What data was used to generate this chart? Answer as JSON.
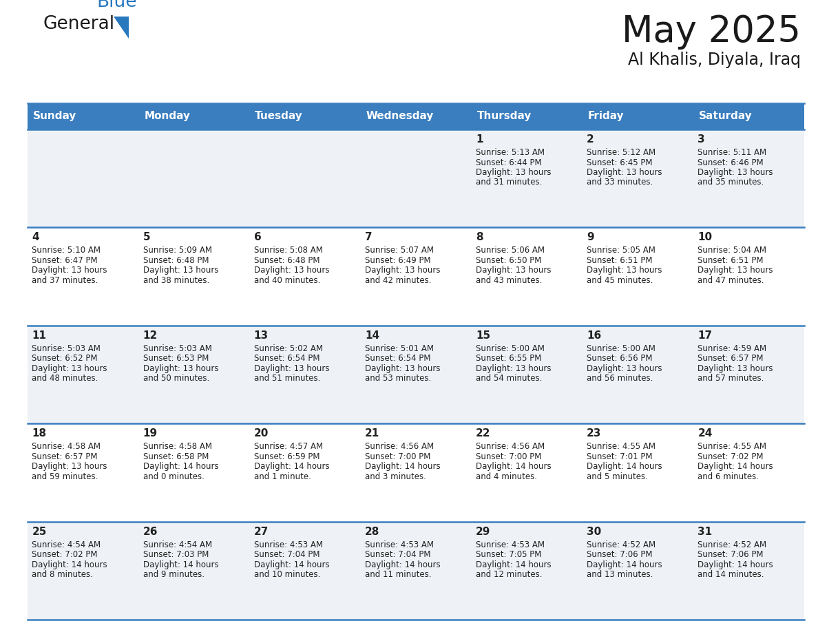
{
  "title": "May 2025",
  "subtitle": "Al Khalis, Diyala, Iraq",
  "days_of_week": [
    "Sunday",
    "Monday",
    "Tuesday",
    "Wednesday",
    "Thursday",
    "Friday",
    "Saturday"
  ],
  "header_bg": "#3a7ebf",
  "header_text_color": "#ffffff",
  "row_bg_odd": "#eef2f7",
  "row_bg_even": "#ffffff",
  "cell_text_color": "#222222",
  "day_number_color": "#222222",
  "grid_line_color": "#3a7ebf",
  "calendar_data": [
    [
      {
        "day": "",
        "sunrise": "",
        "sunset": "",
        "daylight": ""
      },
      {
        "day": "",
        "sunrise": "",
        "sunset": "",
        "daylight": ""
      },
      {
        "day": "",
        "sunrise": "",
        "sunset": "",
        "daylight": ""
      },
      {
        "day": "",
        "sunrise": "",
        "sunset": "",
        "daylight": ""
      },
      {
        "day": "1",
        "sunrise": "5:13 AM",
        "sunset": "6:44 PM",
        "daylight": "13 hours and 31 minutes."
      },
      {
        "day": "2",
        "sunrise": "5:12 AM",
        "sunset": "6:45 PM",
        "daylight": "13 hours and 33 minutes."
      },
      {
        "day": "3",
        "sunrise": "5:11 AM",
        "sunset": "6:46 PM",
        "daylight": "13 hours and 35 minutes."
      }
    ],
    [
      {
        "day": "4",
        "sunrise": "5:10 AM",
        "sunset": "6:47 PM",
        "daylight": "13 hours and 37 minutes."
      },
      {
        "day": "5",
        "sunrise": "5:09 AM",
        "sunset": "6:48 PM",
        "daylight": "13 hours and 38 minutes."
      },
      {
        "day": "6",
        "sunrise": "5:08 AM",
        "sunset": "6:48 PM",
        "daylight": "13 hours and 40 minutes."
      },
      {
        "day": "7",
        "sunrise": "5:07 AM",
        "sunset": "6:49 PM",
        "daylight": "13 hours and 42 minutes."
      },
      {
        "day": "8",
        "sunrise": "5:06 AM",
        "sunset": "6:50 PM",
        "daylight": "13 hours and 43 minutes."
      },
      {
        "day": "9",
        "sunrise": "5:05 AM",
        "sunset": "6:51 PM",
        "daylight": "13 hours and 45 minutes."
      },
      {
        "day": "10",
        "sunrise": "5:04 AM",
        "sunset": "6:51 PM",
        "daylight": "13 hours and 47 minutes."
      }
    ],
    [
      {
        "day": "11",
        "sunrise": "5:03 AM",
        "sunset": "6:52 PM",
        "daylight": "13 hours and 48 minutes."
      },
      {
        "day": "12",
        "sunrise": "5:03 AM",
        "sunset": "6:53 PM",
        "daylight": "13 hours and 50 minutes."
      },
      {
        "day": "13",
        "sunrise": "5:02 AM",
        "sunset": "6:54 PM",
        "daylight": "13 hours and 51 minutes."
      },
      {
        "day": "14",
        "sunrise": "5:01 AM",
        "sunset": "6:54 PM",
        "daylight": "13 hours and 53 minutes."
      },
      {
        "day": "15",
        "sunrise": "5:00 AM",
        "sunset": "6:55 PM",
        "daylight": "13 hours and 54 minutes."
      },
      {
        "day": "16",
        "sunrise": "5:00 AM",
        "sunset": "6:56 PM",
        "daylight": "13 hours and 56 minutes."
      },
      {
        "day": "17",
        "sunrise": "4:59 AM",
        "sunset": "6:57 PM",
        "daylight": "13 hours and 57 minutes."
      }
    ],
    [
      {
        "day": "18",
        "sunrise": "4:58 AM",
        "sunset": "6:57 PM",
        "daylight": "13 hours and 59 minutes."
      },
      {
        "day": "19",
        "sunrise": "4:58 AM",
        "sunset": "6:58 PM",
        "daylight": "14 hours and 0 minutes."
      },
      {
        "day": "20",
        "sunrise": "4:57 AM",
        "sunset": "6:59 PM",
        "daylight": "14 hours and 1 minute."
      },
      {
        "day": "21",
        "sunrise": "4:56 AM",
        "sunset": "7:00 PM",
        "daylight": "14 hours and 3 minutes."
      },
      {
        "day": "22",
        "sunrise": "4:56 AM",
        "sunset": "7:00 PM",
        "daylight": "14 hours and 4 minutes."
      },
      {
        "day": "23",
        "sunrise": "4:55 AM",
        "sunset": "7:01 PM",
        "daylight": "14 hours and 5 minutes."
      },
      {
        "day": "24",
        "sunrise": "4:55 AM",
        "sunset": "7:02 PM",
        "daylight": "14 hours and 6 minutes."
      }
    ],
    [
      {
        "day": "25",
        "sunrise": "4:54 AM",
        "sunset": "7:02 PM",
        "daylight": "14 hours and 8 minutes."
      },
      {
        "day": "26",
        "sunrise": "4:54 AM",
        "sunset": "7:03 PM",
        "daylight": "14 hours and 9 minutes."
      },
      {
        "day": "27",
        "sunrise": "4:53 AM",
        "sunset": "7:04 PM",
        "daylight": "14 hours and 10 minutes."
      },
      {
        "day": "28",
        "sunrise": "4:53 AM",
        "sunset": "7:04 PM",
        "daylight": "14 hours and 11 minutes."
      },
      {
        "day": "29",
        "sunrise": "4:53 AM",
        "sunset": "7:05 PM",
        "daylight": "14 hours and 12 minutes."
      },
      {
        "day": "30",
        "sunrise": "4:52 AM",
        "sunset": "7:06 PM",
        "daylight": "14 hours and 13 minutes."
      },
      {
        "day": "31",
        "sunrise": "4:52 AM",
        "sunset": "7:06 PM",
        "daylight": "14 hours and 14 minutes."
      }
    ]
  ],
  "logo_text_general": "General",
  "logo_text_blue": "Blue",
  "logo_color_general": "#1a1a1a",
  "logo_color_blue": "#2878be",
  "logo_triangle_color": "#2878be",
  "title_fontsize": 38,
  "subtitle_fontsize": 17,
  "header_fontsize": 11,
  "day_num_fontsize": 11,
  "cell_fontsize": 8.5
}
